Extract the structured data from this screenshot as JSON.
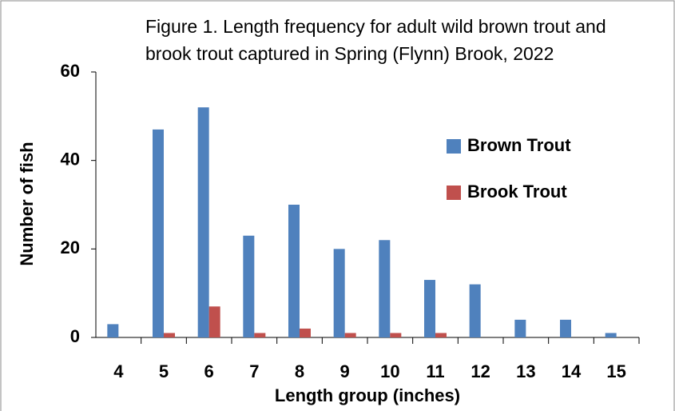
{
  "chart_data": {
    "type": "bar",
    "title": "Figure 1. Length frequency for adult wild brown trout and brook trout captured in Spring (Flynn) Brook, 2022",
    "x_label": "Length group (inches)",
    "y_label": "Number of fish",
    "categories": [
      "4",
      "5",
      "6",
      "7",
      "8",
      "9",
      "10",
      "11",
      "12",
      "13",
      "14",
      "15"
    ],
    "series": [
      {
        "name": "Brown Trout",
        "color": "#4f81bd",
        "values": [
          3,
          47,
          52,
          23,
          30,
          20,
          22,
          13,
          12,
          4,
          4,
          1
        ]
      },
      {
        "name": "Brook Trout",
        "color": "#c0504d",
        "values": [
          0,
          1,
          7,
          1,
          2,
          1,
          1,
          1,
          0,
          0,
          0,
          0
        ]
      }
    ],
    "ylim": [
      0,
      60
    ],
    "yticks": [
      0,
      20,
      40,
      60
    ],
    "grid": false
  }
}
